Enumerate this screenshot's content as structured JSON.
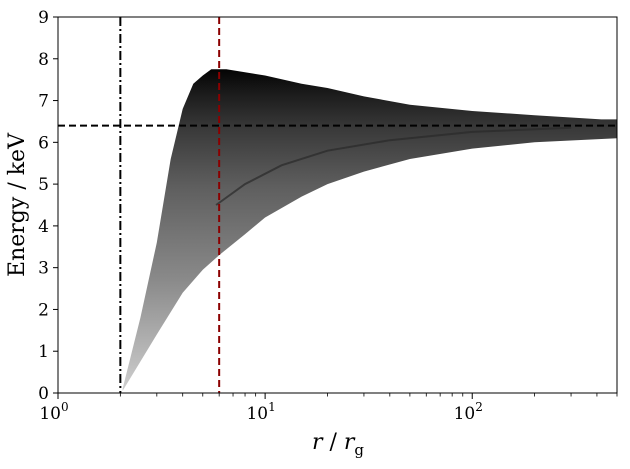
{
  "chart_data": {
    "type": "heatmap",
    "title": "",
    "xlabel_main": "r",
    "xlabel_sep": " / ",
    "xlabel_sym": "r",
    "xlabel_sub": "g",
    "ylabel": "Energy / keV",
    "x_scale": "log",
    "xlim": [
      1,
      500
    ],
    "ylim": [
      0,
      9
    ],
    "y_ticks": [
      "0",
      "1",
      "2",
      "3",
      "4",
      "5",
      "6",
      "7",
      "8",
      "9"
    ],
    "x_major_ticks": [
      {
        "value": 1,
        "base": "10",
        "exp": "0"
      },
      {
        "value": 10,
        "base": "10",
        "exp": "1"
      },
      {
        "value": 100,
        "base": "10",
        "exp": "2"
      }
    ],
    "grid": false,
    "colormap": "grayscale, darker at high energy",
    "reference_lines": [
      {
        "orientation": "horizontal",
        "value": 6.4,
        "style": "dashed",
        "color": "#000000"
      },
      {
        "orientation": "vertical",
        "value": 2.0,
        "style": "dash-dot",
        "color": "#000000"
      },
      {
        "orientation": "vertical",
        "value": 6.0,
        "style": "dashed",
        "color": "#8b0000"
      }
    ],
    "region_upper_envelope": [
      {
        "r": 2.05,
        "e": 0.1
      },
      {
        "r": 2.5,
        "e": 1.8
      },
      {
        "r": 3.0,
        "e": 3.6
      },
      {
        "r": 3.5,
        "e": 5.6
      },
      {
        "r": 4.0,
        "e": 6.8
      },
      {
        "r": 4.5,
        "e": 7.4
      },
      {
        "r": 5.0,
        "e": 7.6
      },
      {
        "r": 5.5,
        "e": 7.75
      },
      {
        "r": 6.5,
        "e": 7.75
      },
      {
        "r": 10,
        "e": 7.6
      },
      {
        "r": 15,
        "e": 7.4
      },
      {
        "r": 20,
        "e": 7.3
      },
      {
        "r": 30,
        "e": 7.1
      },
      {
        "r": 50,
        "e": 6.9
      },
      {
        "r": 100,
        "e": 6.75
      },
      {
        "r": 200,
        "e": 6.65
      },
      {
        "r": 420,
        "e": 6.55
      }
    ],
    "region_lower_envelope": [
      {
        "r": 2.05,
        "e": 0.05
      },
      {
        "r": 3.0,
        "e": 1.4
      },
      {
        "r": 4.0,
        "e": 2.4
      },
      {
        "r": 5.0,
        "e": 2.95
      },
      {
        "r": 6.0,
        "e": 3.3
      },
      {
        "r": 8.0,
        "e": 3.8
      },
      {
        "r": 10,
        "e": 4.2
      },
      {
        "r": 15,
        "e": 4.7
      },
      {
        "r": 20,
        "e": 5.0
      },
      {
        "r": 30,
        "e": 5.3
      },
      {
        "r": 50,
        "e": 5.6
      },
      {
        "r": 100,
        "e": 5.85
      },
      {
        "r": 200,
        "e": 6.0
      },
      {
        "r": 500,
        "e": 6.1
      }
    ],
    "inner_ridge": [
      {
        "r": 5.8,
        "e": 4.5
      },
      {
        "r": 8,
        "e": 5.0
      },
      {
        "r": 12,
        "e": 5.45
      },
      {
        "r": 20,
        "e": 5.8
      },
      {
        "r": 40,
        "e": 6.05
      },
      {
        "r": 100,
        "e": 6.25
      },
      {
        "r": 300,
        "e": 6.35
      }
    ]
  }
}
